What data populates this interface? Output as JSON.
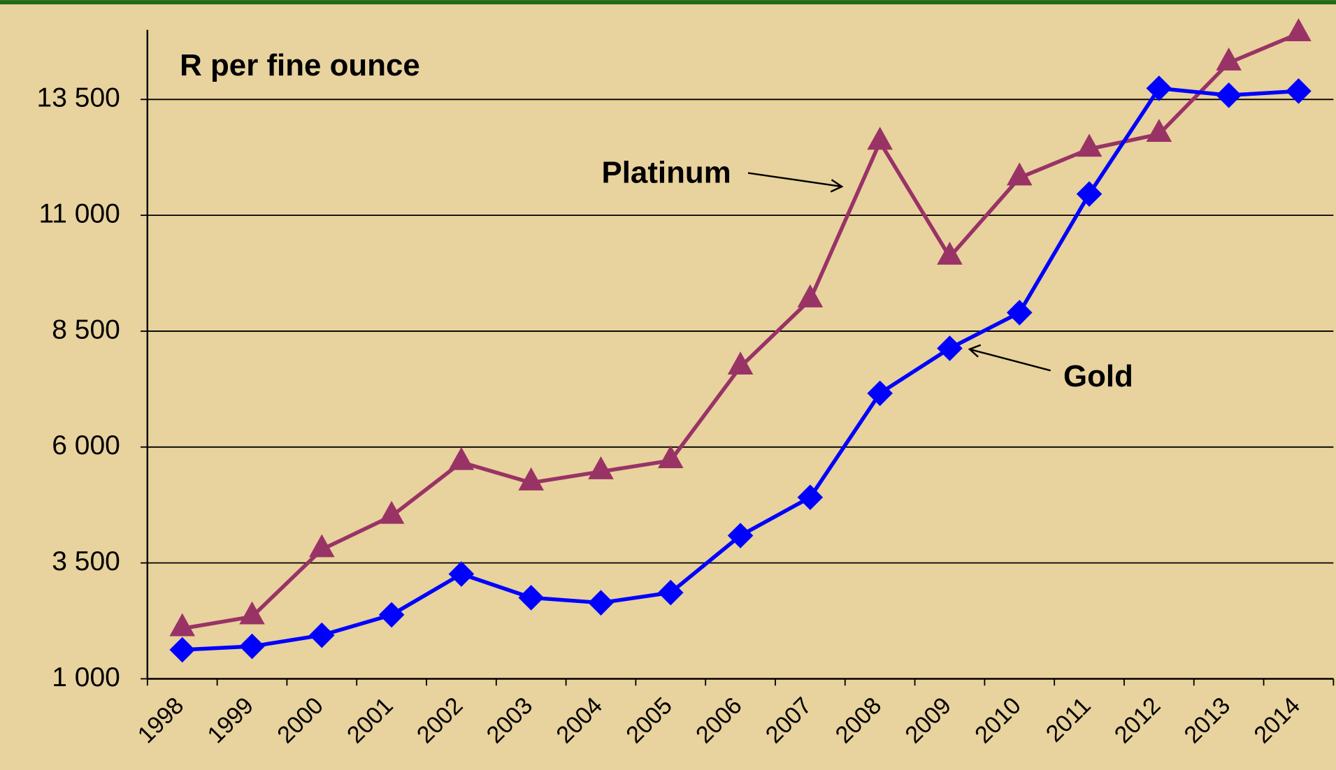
{
  "chart_data": {
    "type": "line",
    "title": "R per fine ounce",
    "categories": [
      "1998",
      "1999",
      "2000",
      "2001",
      "2002",
      "2003",
      "2004",
      "2005",
      "2006",
      "2007",
      "2008",
      "2009",
      "2010",
      "2011",
      "2012",
      "2013",
      "2014"
    ],
    "series": [
      {
        "name": "Platinum",
        "color": "#993366",
        "marker": "triangle",
        "values": [
          2085,
          2340,
          3790,
          4510,
          5670,
          5230,
          5470,
          5710,
          7730,
          9180,
          12580,
          10100,
          11810,
          12430,
          12750,
          14290,
          14920
        ]
      },
      {
        "name": "Gold",
        "color": "#0000ff",
        "marker": "diamond",
        "values": [
          1625,
          1700,
          1940,
          2380,
          3260,
          2750,
          2640,
          2860,
          4090,
          4915,
          7160,
          8130,
          8900,
          11460,
          13740,
          13590,
          13680
        ]
      }
    ],
    "ylim": [
      1000,
      15000
    ],
    "yticks": [
      {
        "value": 1000,
        "label": "1 000"
      },
      {
        "value": 3500,
        "label": "3 500"
      },
      {
        "value": 6000,
        "label": "6 000"
      },
      {
        "value": 8500,
        "label": "8 500"
      },
      {
        "value": 11000,
        "label": "11 000"
      },
      {
        "value": 13500,
        "label": "13 500"
      }
    ],
    "grid": true
  }
}
